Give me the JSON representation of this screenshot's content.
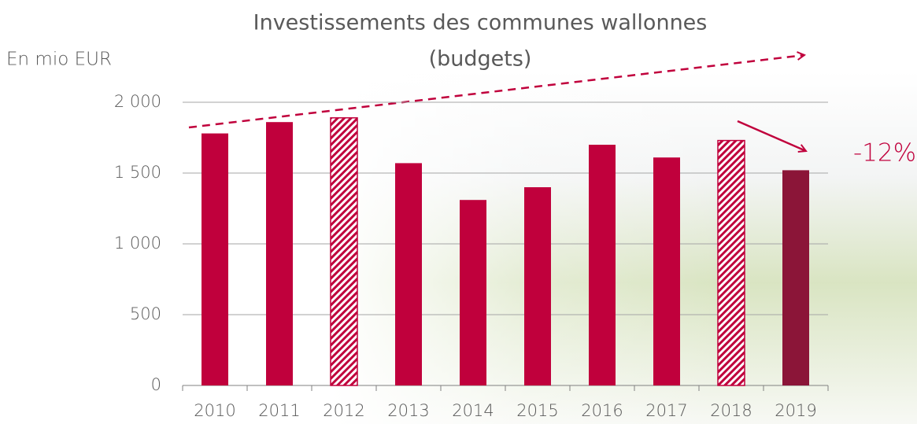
{
  "chart_data": {
    "type": "bar",
    "title": [
      "Investissements des communes wallonnes",
      "(budgets)"
    ],
    "y_axis_label": "En mio EUR",
    "annotation": "-12%",
    "categories": [
      "2010",
      "2011",
      "2012",
      "2013",
      "2014",
      "2015",
      "2016",
      "2017",
      "2018",
      "2019"
    ],
    "values": [
      1780,
      1860,
      1890,
      1570,
      1310,
      1400,
      1700,
      1610,
      1730,
      1520
    ],
    "colors": [
      "#c0003c",
      "#c0003c",
      "#c0003c",
      "#c0003c",
      "#c0003c",
      "#c0003c",
      "#c0003c",
      "#c0003c",
      "#c0003c",
      "#8b1538"
    ],
    "hatched": [
      false,
      false,
      true,
      false,
      false,
      false,
      false,
      false,
      true,
      false
    ],
    "ylim": [
      0,
      2000
    ],
    "yticks": [
      0,
      500,
      {
        "value": 1000,
        "label": "1 000"
      },
      {
        "value": 1500,
        "label": "1 500"
      },
      {
        "value": 2000,
        "label": "2 000"
      }
    ],
    "grid": true
  }
}
